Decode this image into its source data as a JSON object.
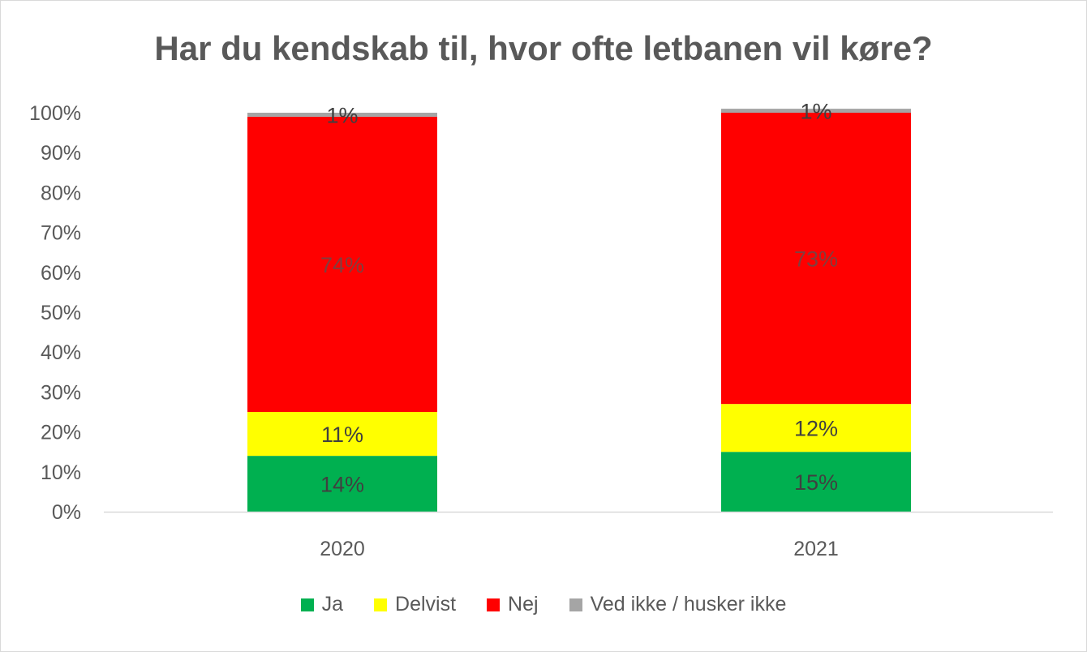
{
  "chart_data": {
    "type": "bar",
    "stacked": true,
    "title": "Har du kendskab til, hvor ofte letbanen vil køre?",
    "categories": [
      "2020",
      "2021"
    ],
    "series": [
      {
        "name": "Ja",
        "color": "#00b050",
        "values": [
          14,
          15
        ],
        "labels": [
          "14%",
          "15%"
        ],
        "label_color": "#404040"
      },
      {
        "name": "Delvist",
        "color": "#ffff00",
        "values": [
          11,
          12
        ],
        "labels": [
          "11%",
          "12%"
        ],
        "label_color": "#404040"
      },
      {
        "name": "Nej",
        "color": "#ff0000",
        "values": [
          74,
          73
        ],
        "labels": [
          "74%",
          "73%"
        ],
        "label_color": "#7f3f3f"
      },
      {
        "name": "Ved ikke / husker ikke",
        "color": "#a5a5a5",
        "values": [
          1,
          1
        ],
        "labels": [
          "1%",
          "1%"
        ],
        "label_color": "#404040"
      }
    ],
    "ylim": [
      0,
      100
    ],
    "yticks": [
      "0%",
      "10%",
      "20%",
      "30%",
      "40%",
      "50%",
      "60%",
      "70%",
      "80%",
      "90%",
      "100%"
    ],
    "grid": false,
    "legend_position": "bottom"
  }
}
